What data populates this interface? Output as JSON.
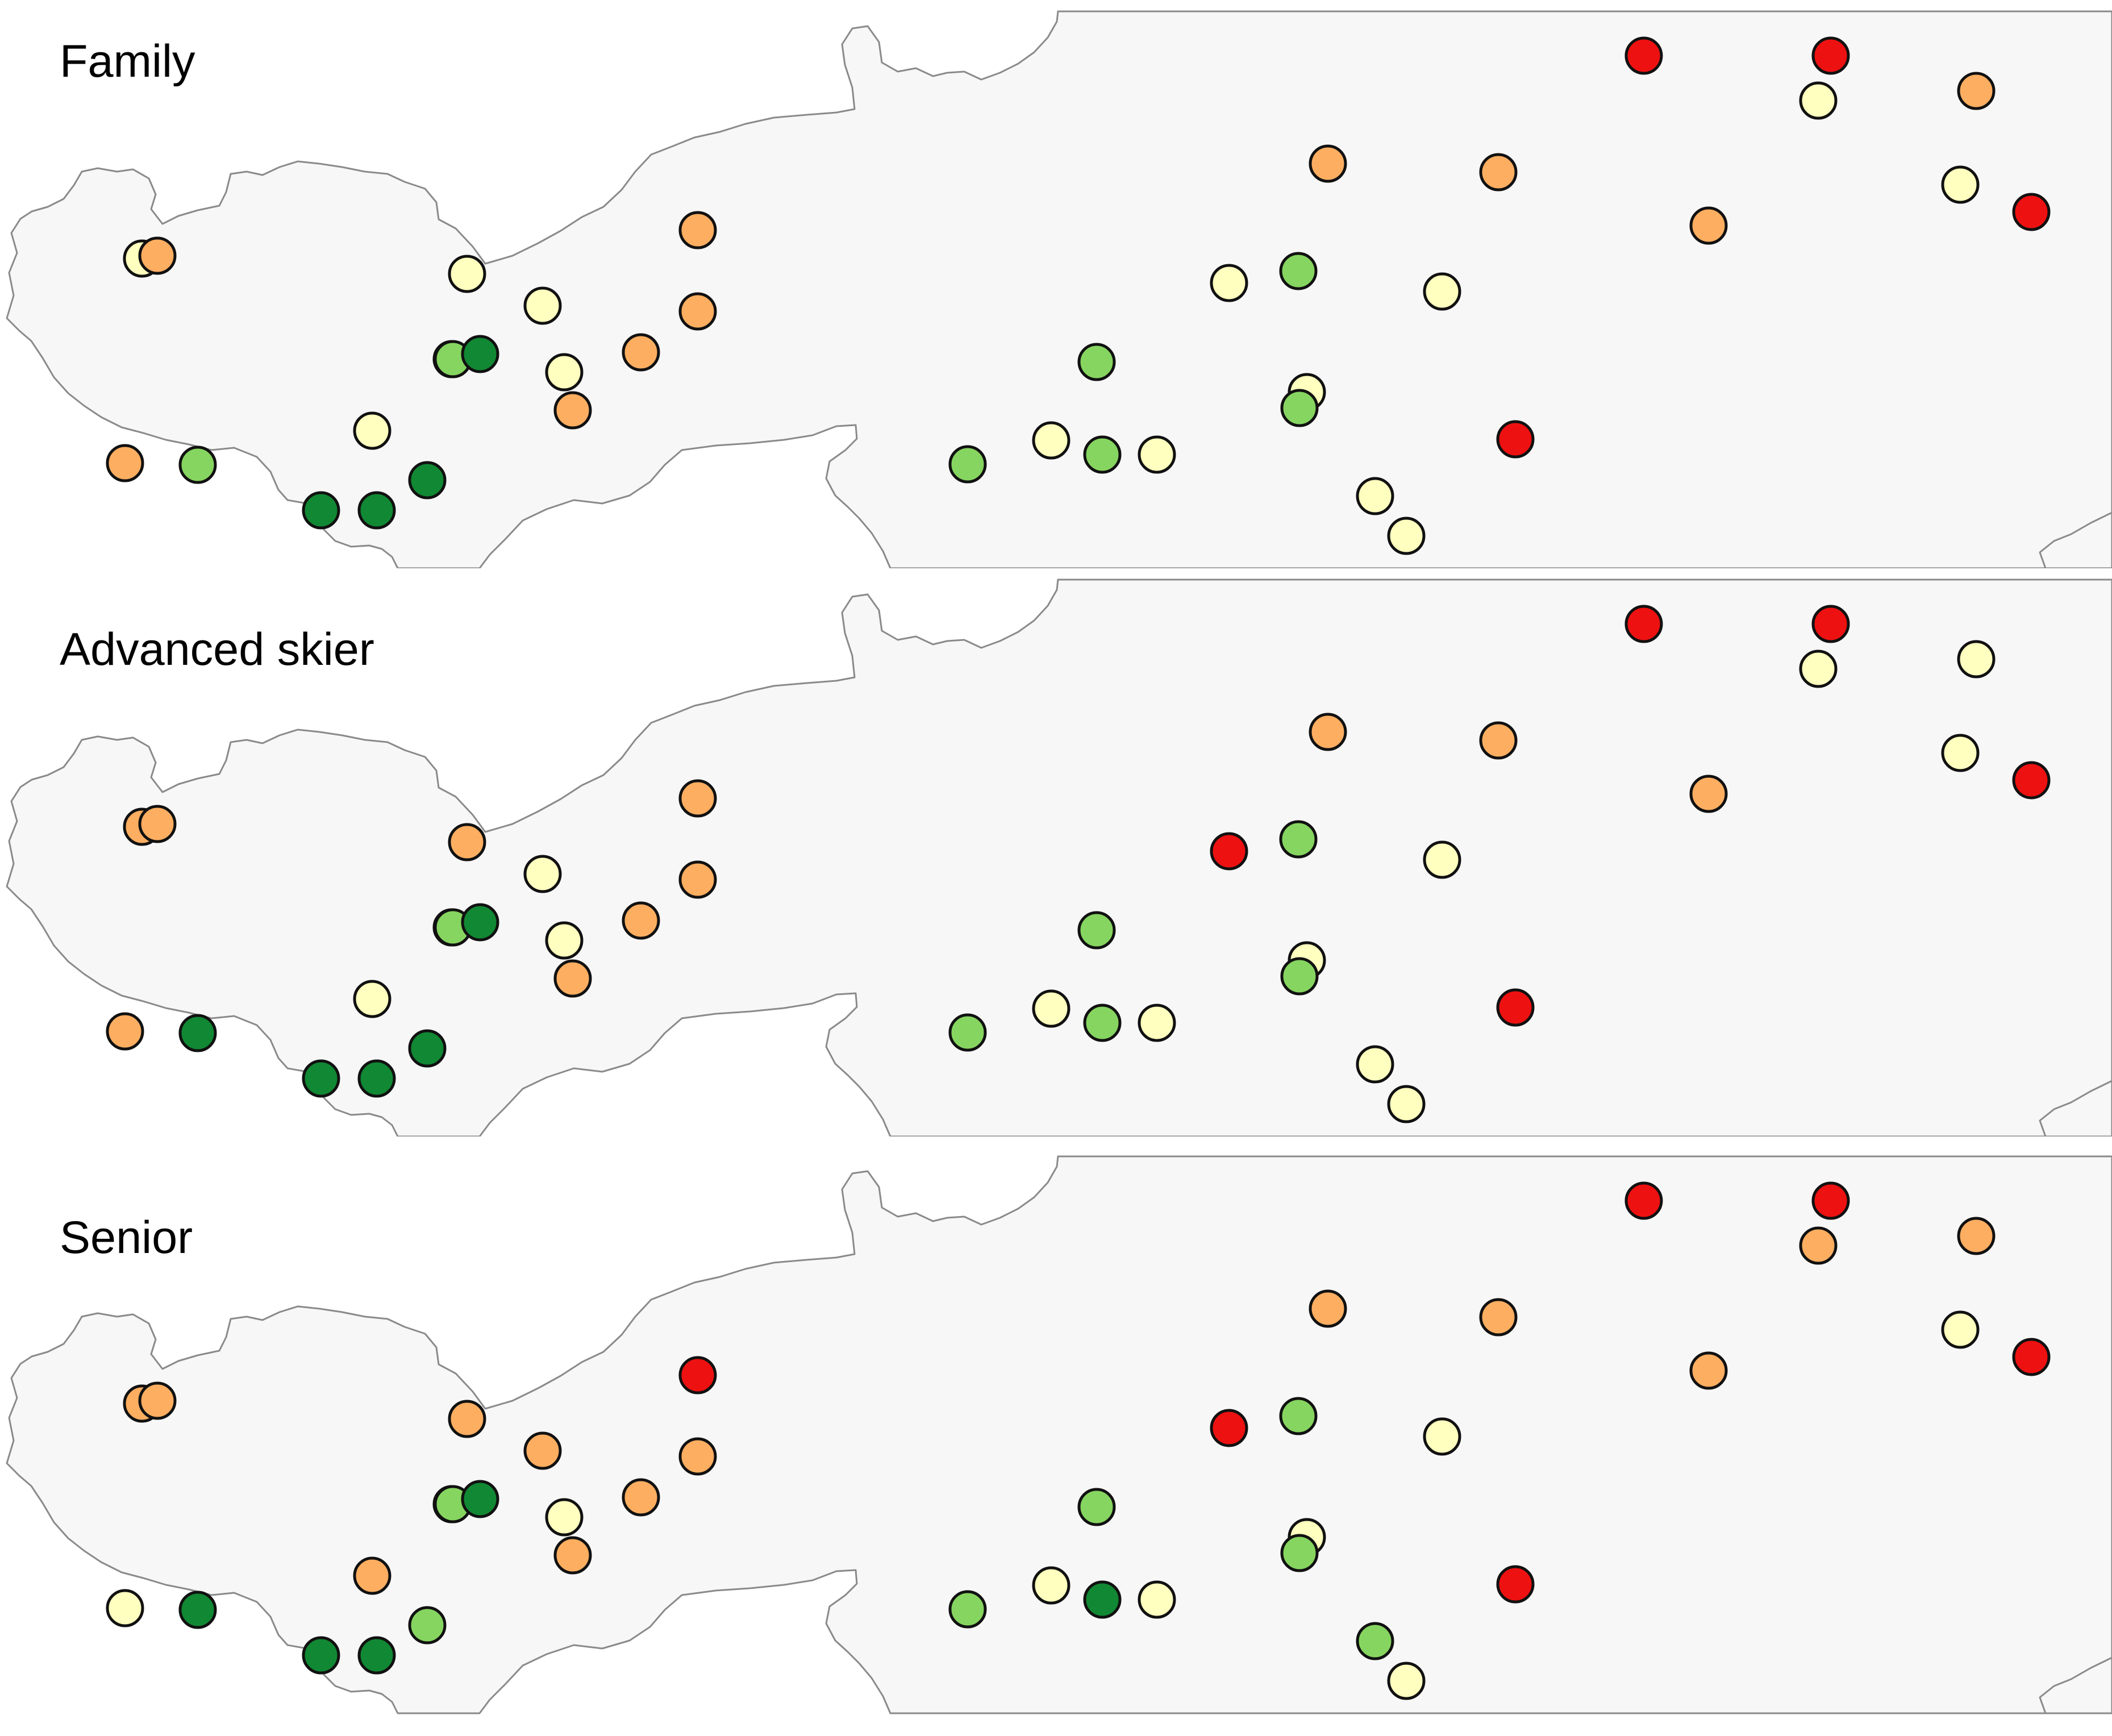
{
  "colors": {
    "background": "#ffffff",
    "land": "#f7f7f7",
    "border": "#8a8a8a",
    "marker_outline": "#111111",
    "category": {
      "red": "#ee1111",
      "orange": "#fdae61",
      "light-yellow": "#ffffbf",
      "light-green": "#86d560",
      "dark-green": "#118833"
    }
  },
  "panels": [
    {
      "title": "Family",
      "markers": [
        {
          "id": 1,
          "category": "light-yellow"
        },
        {
          "id": 2,
          "category": "orange"
        },
        {
          "id": 3,
          "category": "orange"
        },
        {
          "id": 4,
          "category": "light-green"
        },
        {
          "id": 5,
          "category": "dark-green"
        },
        {
          "id": 6,
          "category": "dark-green"
        },
        {
          "id": 7,
          "category": "dark-green"
        },
        {
          "id": 8,
          "category": "light-yellow"
        },
        {
          "id": 9,
          "category": "light-green"
        },
        {
          "id": 10,
          "category": "light-yellow"
        },
        {
          "id": 11,
          "category": "light-green"
        },
        {
          "id": 12,
          "category": "dark-green"
        },
        {
          "id": 13,
          "category": "light-yellow"
        },
        {
          "id": 14,
          "category": "light-yellow"
        },
        {
          "id": 15,
          "category": "orange"
        },
        {
          "id": 16,
          "category": "orange"
        },
        {
          "id": 17,
          "category": "orange"
        },
        {
          "id": 18,
          "category": "orange"
        },
        {
          "id": 19,
          "category": "light-green"
        },
        {
          "id": 20,
          "category": "light-yellow"
        },
        {
          "id": 21,
          "category": "light-green"
        },
        {
          "id": 22,
          "category": "light-yellow"
        },
        {
          "id": 23,
          "category": "light-green"
        },
        {
          "id": 24,
          "category": "light-yellow"
        },
        {
          "id": 25,
          "category": "light-green"
        },
        {
          "id": 26,
          "category": "orange"
        },
        {
          "id": 27,
          "category": "light-yellow"
        },
        {
          "id": 28,
          "category": "light-green"
        },
        {
          "id": 29,
          "category": "light-yellow"
        },
        {
          "id": 30,
          "category": "light-yellow"
        },
        {
          "id": 31,
          "category": "orange"
        },
        {
          "id": 32,
          "category": "light-yellow"
        },
        {
          "id": 33,
          "category": "red"
        },
        {
          "id": 34,
          "category": "red"
        },
        {
          "id": 35,
          "category": "orange"
        },
        {
          "id": 36,
          "category": "red"
        },
        {
          "id": 37,
          "category": "light-yellow"
        },
        {
          "id": 38,
          "category": "orange"
        },
        {
          "id": 39,
          "category": "light-yellow"
        },
        {
          "id": 40,
          "category": "red"
        }
      ]
    },
    {
      "title": "Advanced skier",
      "markers": [
        {
          "id": 1,
          "category": "orange"
        },
        {
          "id": 2,
          "category": "orange"
        },
        {
          "id": 3,
          "category": "orange"
        },
        {
          "id": 4,
          "category": "dark-green"
        },
        {
          "id": 5,
          "category": "dark-green"
        },
        {
          "id": 6,
          "category": "dark-green"
        },
        {
          "id": 7,
          "category": "dark-green"
        },
        {
          "id": 8,
          "category": "light-yellow"
        },
        {
          "id": 9,
          "category": "light-yellow"
        },
        {
          "id": 10,
          "category": "orange"
        },
        {
          "id": 11,
          "category": "light-green"
        },
        {
          "id": 12,
          "category": "dark-green"
        },
        {
          "id": 13,
          "category": "light-yellow"
        },
        {
          "id": 14,
          "category": "light-yellow"
        },
        {
          "id": 15,
          "category": "orange"
        },
        {
          "id": 16,
          "category": "orange"
        },
        {
          "id": 17,
          "category": "orange"
        },
        {
          "id": 18,
          "category": "orange"
        },
        {
          "id": 19,
          "category": "light-green"
        },
        {
          "id": 20,
          "category": "light-yellow"
        },
        {
          "id": 21,
          "category": "light-green"
        },
        {
          "id": 22,
          "category": "light-yellow"
        },
        {
          "id": 23,
          "category": "light-green"
        },
        {
          "id": 24,
          "category": "red"
        },
        {
          "id": 25,
          "category": "light-green"
        },
        {
          "id": 26,
          "category": "orange"
        },
        {
          "id": 27,
          "category": "light-yellow"
        },
        {
          "id": 28,
          "category": "light-green"
        },
        {
          "id": 29,
          "category": "light-yellow"
        },
        {
          "id": 30,
          "category": "light-yellow"
        },
        {
          "id": 31,
          "category": "orange"
        },
        {
          "id": 32,
          "category": "light-yellow"
        },
        {
          "id": 33,
          "category": "red"
        },
        {
          "id": 34,
          "category": "red"
        },
        {
          "id": 35,
          "category": "orange"
        },
        {
          "id": 36,
          "category": "red"
        },
        {
          "id": 37,
          "category": "light-yellow"
        },
        {
          "id": 38,
          "category": "light-yellow"
        },
        {
          "id": 39,
          "category": "light-yellow"
        },
        {
          "id": 40,
          "category": "red"
        }
      ]
    },
    {
      "title": "Senior",
      "markers": [
        {
          "id": 1,
          "category": "orange"
        },
        {
          "id": 2,
          "category": "orange"
        },
        {
          "id": 3,
          "category": "light-yellow"
        },
        {
          "id": 4,
          "category": "dark-green"
        },
        {
          "id": 5,
          "category": "dark-green"
        },
        {
          "id": 6,
          "category": "dark-green"
        },
        {
          "id": 7,
          "category": "light-green"
        },
        {
          "id": 8,
          "category": "orange"
        },
        {
          "id": 9,
          "category": "light-yellow"
        },
        {
          "id": 10,
          "category": "orange"
        },
        {
          "id": 11,
          "category": "light-green"
        },
        {
          "id": 12,
          "category": "dark-green"
        },
        {
          "id": 13,
          "category": "orange"
        },
        {
          "id": 14,
          "category": "light-yellow"
        },
        {
          "id": 15,
          "category": "orange"
        },
        {
          "id": 16,
          "category": "orange"
        },
        {
          "id": 17,
          "category": "orange"
        },
        {
          "id": 18,
          "category": "red"
        },
        {
          "id": 19,
          "category": "light-green"
        },
        {
          "id": 20,
          "category": "light-yellow"
        },
        {
          "id": 21,
          "category": "dark-green"
        },
        {
          "id": 22,
          "category": "light-yellow"
        },
        {
          "id": 23,
          "category": "light-green"
        },
        {
          "id": 24,
          "category": "red"
        },
        {
          "id": 25,
          "category": "light-green"
        },
        {
          "id": 26,
          "category": "orange"
        },
        {
          "id": 27,
          "category": "light-yellow"
        },
        {
          "id": 28,
          "category": "light-green"
        },
        {
          "id": 29,
          "category": "light-green"
        },
        {
          "id": 30,
          "category": "light-yellow"
        },
        {
          "id": 31,
          "category": "orange"
        },
        {
          "id": 32,
          "category": "light-yellow"
        },
        {
          "id": 33,
          "category": "red"
        },
        {
          "id": 34,
          "category": "red"
        },
        {
          "id": 35,
          "category": "orange"
        },
        {
          "id": 36,
          "category": "red"
        },
        {
          "id": 37,
          "category": "orange"
        },
        {
          "id": 38,
          "category": "orange"
        },
        {
          "id": 39,
          "category": "light-yellow"
        },
        {
          "id": 40,
          "category": "red"
        }
      ]
    }
  ]
}
